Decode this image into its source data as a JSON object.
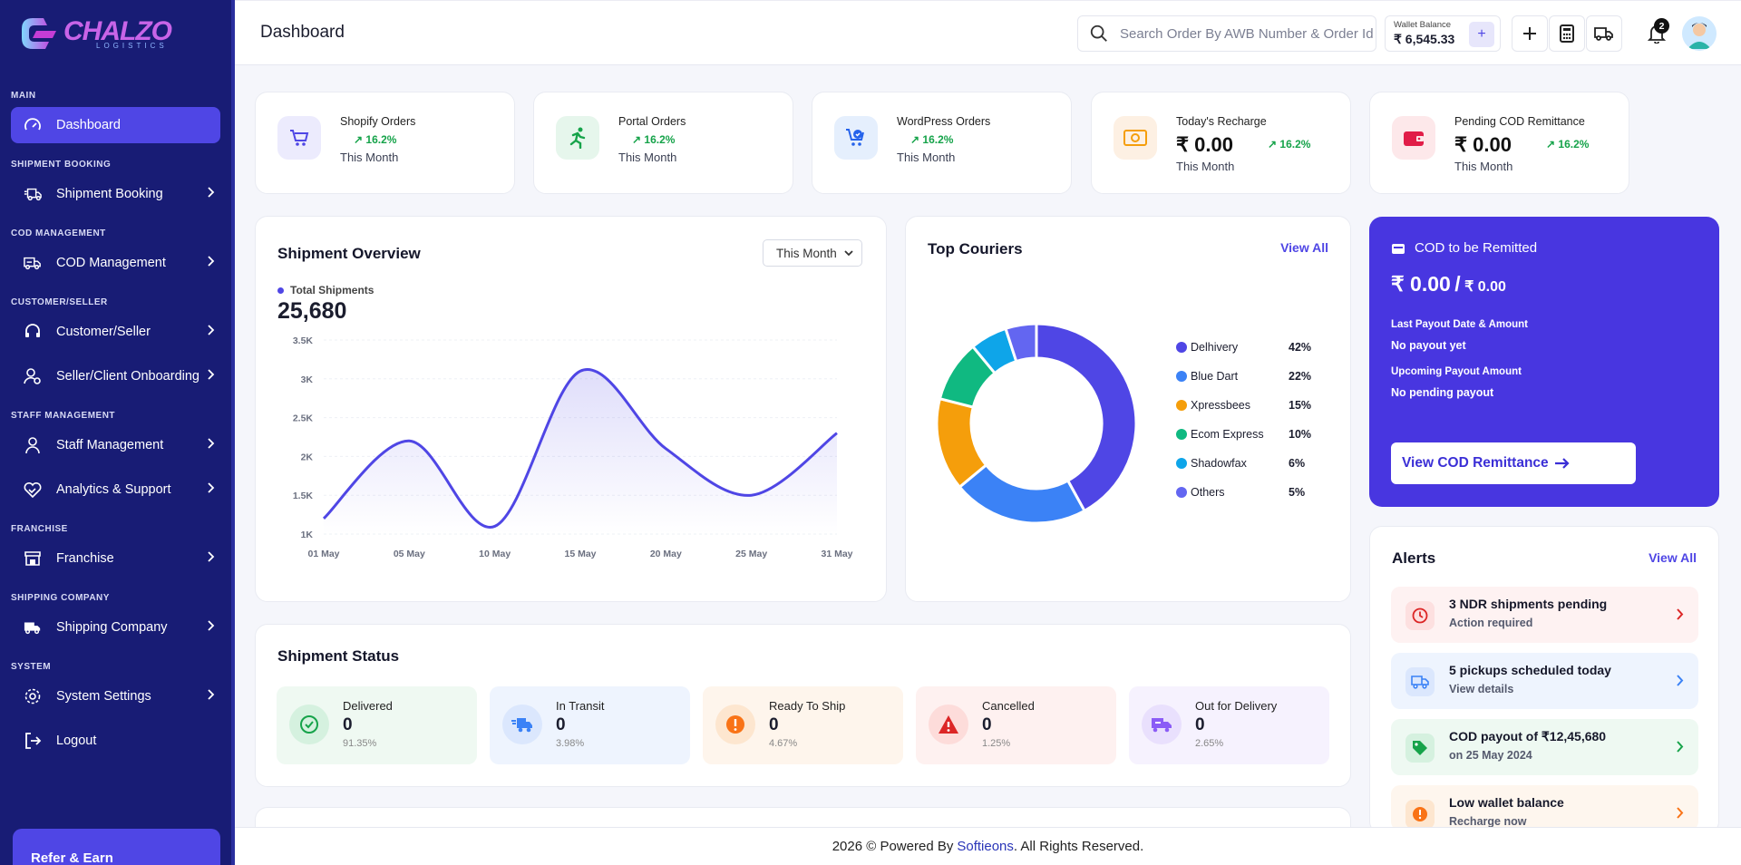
{
  "brand": {
    "name": "CHALZO",
    "tagline": "LOGISTICS",
    "mark": "C"
  },
  "sidebar": {
    "sections": [
      {
        "label": "MAIN",
        "items": [
          {
            "label": "Dashboard",
            "icon": "gauge-icon",
            "active": true,
            "chevron": false
          }
        ]
      },
      {
        "label": "SHIPMENT BOOKING",
        "items": [
          {
            "label": "Shipment Booking",
            "icon": "truck-fast-icon",
            "chevron": true
          }
        ]
      },
      {
        "label": "COD MANAGEMENT",
        "items": [
          {
            "label": "COD Management",
            "icon": "truck-money-icon",
            "chevron": true
          }
        ]
      },
      {
        "label": "CUSTOMER/SELLER",
        "items": [
          {
            "label": "Customer/Seller",
            "icon": "headset-icon",
            "chevron": true
          },
          {
            "label": "Seller/Client Onboarding",
            "icon": "user-gear-icon",
            "chevron": true
          }
        ]
      },
      {
        "label": "STAFF MANAGEMENT",
        "items": [
          {
            "label": "Staff Management",
            "icon": "user-icon",
            "chevron": true
          },
          {
            "label": "Analytics & Support",
            "icon": "handshake-heart-icon",
            "chevron": true
          }
        ]
      },
      {
        "label": "FRANCHISE",
        "items": [
          {
            "label": "Franchise",
            "icon": "store-icon",
            "chevron": true
          }
        ]
      },
      {
        "label": "SHIPPING COMPANY",
        "items": [
          {
            "label": "Shipping Company",
            "icon": "truck-icon",
            "chevron": true
          }
        ]
      },
      {
        "label": "SYSTEM",
        "items": [
          {
            "label": "System Settings",
            "icon": "gear-icon",
            "chevron": true
          },
          {
            "label": "Logout",
            "icon": "logout-icon",
            "chevron": false
          }
        ]
      }
    ],
    "refer": "Refer & Earn"
  },
  "header": {
    "title": "Dashboard",
    "search_placeholder": "Search Order By AWB Number & Order Id",
    "wallet_label": "Wallet Balance",
    "wallet_amount": "₹ 6,545.33",
    "notif_count": "2"
  },
  "stats": [
    {
      "title": "Shopify Orders",
      "pct": "16.2%",
      "sub": "This Month",
      "icon": "cart-icon",
      "bg": "#ecebfd",
      "fg": "#4f46e5"
    },
    {
      "title": "Portal Orders",
      "pct": "16.2%",
      "sub": "This Month",
      "icon": "runner-icon",
      "bg": "#e6f6ec",
      "fg": "#16a34a"
    },
    {
      "title": "WordPress Orders",
      "pct": "16.2%",
      "sub": "This Month",
      "icon": "cart-check-icon",
      "bg": "#e5effd",
      "fg": "#2563eb"
    },
    {
      "title": "Today's Recharge",
      "value": "₹ 0.00",
      "pct": "16.2%",
      "sub": "This Month",
      "icon": "money-icon",
      "bg": "#fdf0e3",
      "fg": "#f59e0b"
    },
    {
      "title": "Pending COD Remittance",
      "value": "₹ 0.00",
      "pct": "16.2%",
      "sub": "This Month",
      "icon": "wallet-icon",
      "bg": "#fde8ea",
      "fg": "#e11d48"
    }
  ],
  "overview": {
    "title": "Shipment Overview",
    "period": "This Month",
    "legend": "Total Shipments",
    "total": "25,680"
  },
  "chart_data": {
    "type": "area",
    "x": [
      "01 May",
      "05 May",
      "10 May",
      "15 May",
      "20 May",
      "25 May",
      "31 May"
    ],
    "series": [
      {
        "name": "Total Shipments",
        "values": [
          1200,
          2200,
          1100,
          3100,
          2100,
          1500,
          2300
        ]
      }
    ],
    "yticks": [
      "1K",
      "1.5K",
      "2K",
      "2.5K",
      "3K",
      "3.5K"
    ],
    "ylim": [
      1000,
      3500
    ],
    "color": "#4f46e5"
  },
  "couriers": {
    "title": "Top Couriers",
    "view_all": "View All",
    "chart_data": {
      "type": "pie",
      "categories": [
        "Delhivery",
        "Blue Dart",
        "Xpressbees",
        "Ecom Express",
        "Shadowfax",
        "Others"
      ],
      "values": [
        42,
        22,
        15,
        10,
        6,
        5
      ],
      "colors": [
        "#4f46e5",
        "#3b82f6",
        "#f59e0b",
        "#10b981",
        "#0ea5e9",
        "#6366f1"
      ]
    },
    "labels": [
      "42%",
      "22%",
      "15%",
      "10%",
      "6%",
      "5%"
    ]
  },
  "cod": {
    "title": "COD to be Remitted",
    "amount_big": "₹ 0.00",
    "slash": "/",
    "amount_small": "₹ 0.00",
    "last_label": "Last Payout Date & Amount",
    "last_value": "No payout yet",
    "upcoming_label": "Upcoming Payout Amount",
    "upcoming_value": "No pending payout",
    "button": "View COD Remittance"
  },
  "status": {
    "title": "Shipment Status",
    "tiles": [
      {
        "label": "Delivered",
        "count": "0",
        "pct": "91.35%",
        "bg": "#eff9f2",
        "circ": "#d5f1df",
        "fg": "#16a34a",
        "icon": "check-circle-icon"
      },
      {
        "label": "In Transit",
        "count": "0",
        "pct": "3.98%",
        "bg": "#eef4fe",
        "circ": "#dbe7fd",
        "fg": "#3b82f6",
        "icon": "truck-fast-icon"
      },
      {
        "label": "Ready To Ship",
        "count": "0",
        "pct": "4.67%",
        "bg": "#fef5ec",
        "circ": "#fde6cf",
        "fg": "#f97316",
        "icon": "exclamation-icon"
      },
      {
        "label": "Cancelled",
        "count": "0",
        "pct": "1.25%",
        "bg": "#fef1f0",
        "circ": "#fddcda",
        "fg": "#dc2626",
        "icon": "warning-icon"
      },
      {
        "label": "Out for Delivery",
        "count": "0",
        "pct": "2.65%",
        "bg": "#f6f2fe",
        "circ": "#e9e0fd",
        "fg": "#8b5cf6",
        "icon": "truck-delivery-icon"
      }
    ]
  },
  "alerts": {
    "title": "Alerts",
    "view_all": "View All",
    "items": [
      {
        "title": "3 NDR shipments pending",
        "sub": "Action required",
        "bg": "#fef2f2",
        "ibg": "#fde0e0",
        "fg": "#dc2626",
        "icon": "clock-icon"
      },
      {
        "title": "5 pickups scheduled today",
        "sub": "View details",
        "bg": "#eef4fe",
        "ibg": "#dbe7fd",
        "fg": "#3b82f6",
        "icon": "truck-icon"
      },
      {
        "title": "COD payout of ₹12,45,680",
        "sub": "on 25 May 2024",
        "bg": "#eef9f2",
        "ibg": "#d5f1df",
        "fg": "#16a34a",
        "icon": "tag-icon"
      },
      {
        "title": "Low wallet balance",
        "sub": "Recharge now",
        "bg": "#fef6ee",
        "ibg": "#fde6cf",
        "fg": "#f97316",
        "icon": "exclamation-icon"
      }
    ]
  },
  "footer": {
    "text": "2026 © Powered By",
    "brand": "Softieons",
    "rights": ". All Rights Reserved."
  }
}
